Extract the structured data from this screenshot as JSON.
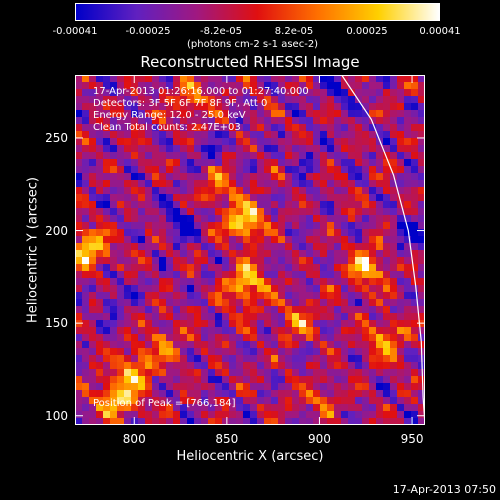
{
  "chart_data": {
    "type": "heatmap",
    "title": "Reconstructed RHESSI Image",
    "xlabel": "Heliocentric X (arcsec)",
    "ylabel": "Heliocentric Y (arcsec)",
    "xlim": [
      768,
      957
    ],
    "ylim": [
      95,
      284
    ],
    "xticks": [
      "800",
      "850",
      "900",
      "950"
    ],
    "yticks": [
      "100",
      "150",
      "200",
      "250"
    ],
    "colorbar": {
      "colors": [
        "#0000c8",
        "#6020c0",
        "#a01880",
        "#e01010",
        "#ff7000",
        "#ffd000",
        "#ffffff"
      ],
      "ticks": [
        "-0.00041",
        "-0.00025",
        "-8.2e-05",
        "8.2e-05",
        "0.00025",
        "0.00041"
      ],
      "units": "(photons cm-2 s-1 asec-2)"
    },
    "info_lines": [
      "17-Apr-2013 01:26:16.000 to 01:27:40.000",
      "Detectors: 3F 5F 6F 7F 8F 9F, Att 0",
      "Energy Range: 12.0 - 25.0 keV",
      "Clean    Total counts: 2.47E+03"
    ],
    "peak_text": "Position of Peak = [766,184]",
    "hot_spots": [
      {
        "x": 860,
        "y": 205,
        "amp": 1.0
      },
      {
        "x": 860,
        "y": 170,
        "amp": 0.9
      },
      {
        "x": 845,
        "y": 225,
        "amp": 0.6
      },
      {
        "x": 890,
        "y": 150,
        "amp": 0.5
      },
      {
        "x": 925,
        "y": 180,
        "amp": 0.85
      },
      {
        "x": 935,
        "y": 140,
        "amp": 0.7
      },
      {
        "x": 775,
        "y": 190,
        "amp": 0.9
      },
      {
        "x": 790,
        "y": 110,
        "amp": 0.9
      },
      {
        "x": 800,
        "y": 125,
        "amp": 0.7
      },
      {
        "x": 830,
        "y": 270,
        "amp": 0.6
      },
      {
        "x": 815,
        "y": 140,
        "amp": 0.5
      },
      {
        "x": 900,
        "y": 110,
        "amp": 0.4
      }
    ],
    "cold_spots": [
      {
        "x": 825,
        "y": 205,
        "amp": 1.0
      },
      {
        "x": 950,
        "y": 200,
        "amp": 0.9
      },
      {
        "x": 840,
        "y": 240,
        "amp": 0.6
      },
      {
        "x": 790,
        "y": 160,
        "amp": 0.6
      },
      {
        "x": 895,
        "y": 240,
        "amp": 0.5
      },
      {
        "x": 910,
        "y": 275,
        "amp": 0.6
      }
    ],
    "limb": [
      [
        912,
        284
      ],
      [
        928,
        260
      ],
      [
        940,
        230
      ],
      [
        948,
        200
      ],
      [
        952,
        170
      ],
      [
        955,
        140
      ],
      [
        956,
        110
      ],
      [
        957,
        95
      ]
    ]
  },
  "footer": "17-Apr-2013 07:50"
}
